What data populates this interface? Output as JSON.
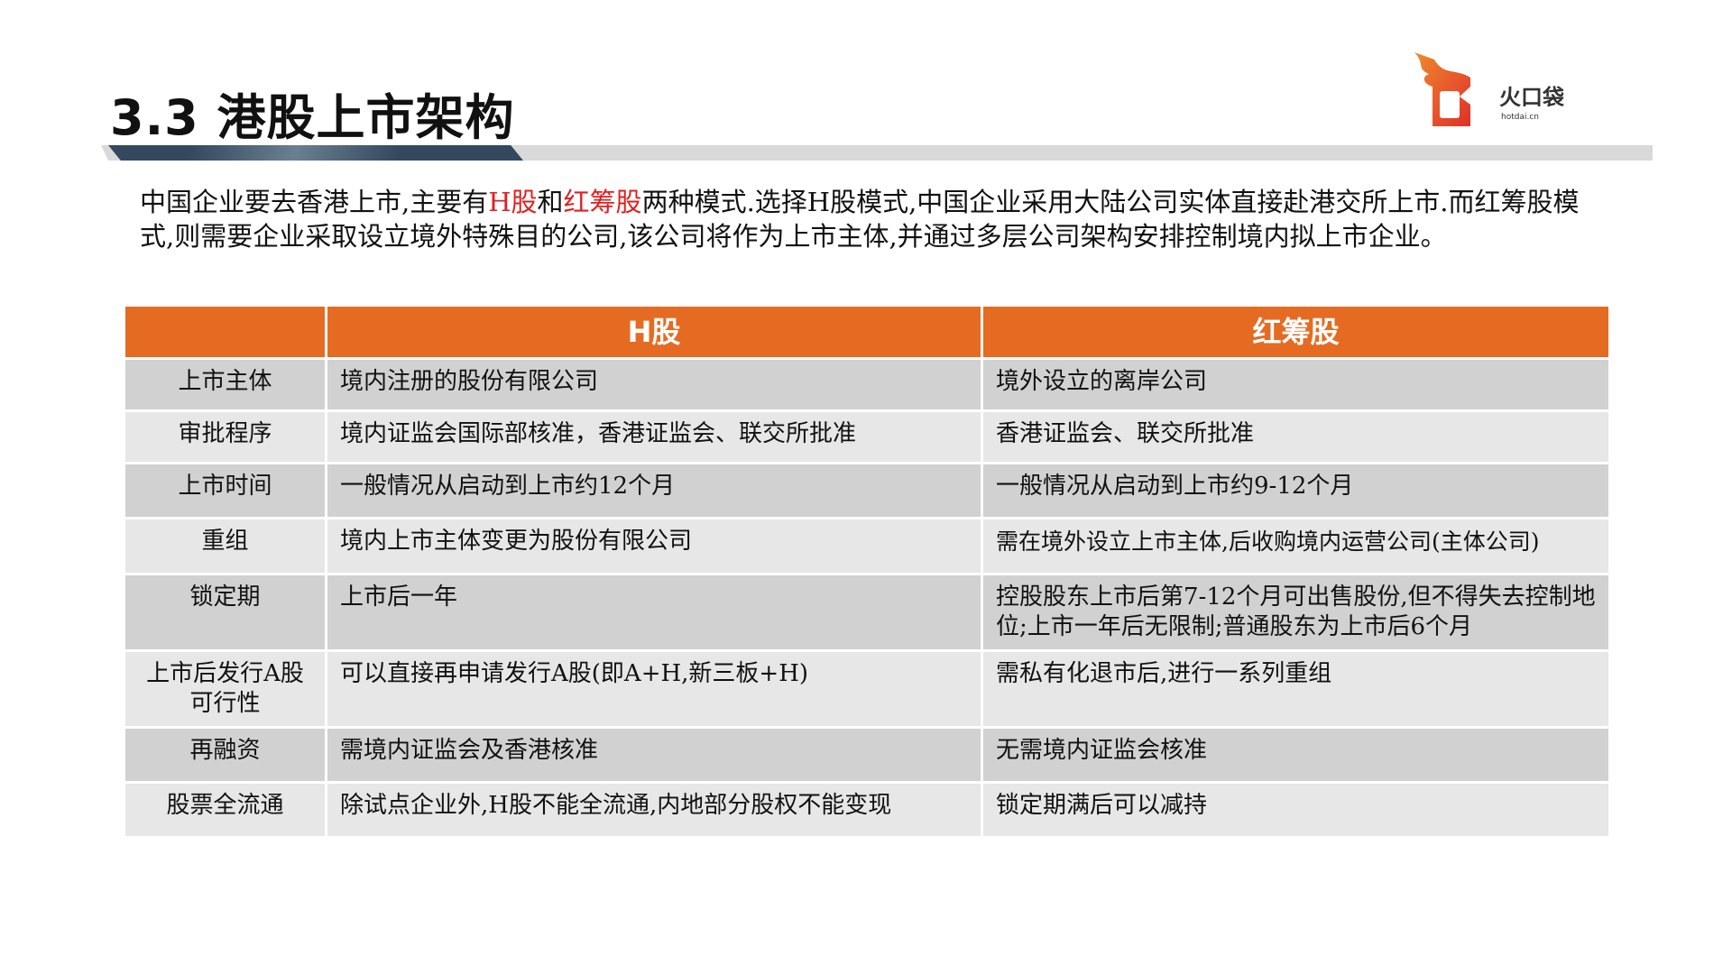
{
  "title": "3.3 港股上市架构",
  "logo": {
    "name": "火口袋",
    "domain": "hotdai.cn"
  },
  "intro": {
    "p1": "中国企业要去香港上市,主要有",
    "h": "H股",
    "p2": "和",
    "r": "红筹股",
    "p3": "两种模式.选择H股模式,中国企业采用大陆公司实体直接赴港交所上市.而红筹股模式,则需要企业采取设立境外特殊目的公司,该公司将作为上市主体,并通过多层公司架构安排控制境内拟上市企业。"
  },
  "table": {
    "headers": [
      "",
      "H股",
      "红筹股"
    ],
    "rows": [
      [
        "上市主体",
        "境内注册的股份有限公司",
        "境外设立的离岸公司"
      ],
      [
        "审批程序",
        "境内证监会国际部核准，香港证监会、联交所批准",
        "香港证监会、联交所批准"
      ],
      [
        "上市时间",
        "一般情况从启动到上市约12个月",
        "一般情况从启动到上市约9-12个月"
      ],
      [
        "重组",
        "境内上市主体变更为股份有限公司",
        "需在境外设立上市主体,后收购境内运营公司(主体公司)"
      ],
      [
        "锁定期",
        "上市后一年",
        "控股股东上市后第7-12个月可出售股份,但不得失去控制地位;上市一年后无限制;普通股东为上市后6个月"
      ],
      [
        "上市后发行A股可行性",
        "可以直接再申请发行A股(即A+H,新三板+H)",
        "需私有化退市后,进行一系列重组"
      ],
      [
        "再融资",
        "需境内证监会及香港核准",
        "无需境内证监会核准"
      ],
      [
        "股票全流通",
        "除试点企业外,H股不能全流通,内地部分股权不能变现",
        "锁定期满后可以减持"
      ]
    ]
  },
  "colors": {
    "accent": "#e56b22",
    "highlight": "#e02020",
    "band_dark": "#34495e"
  }
}
